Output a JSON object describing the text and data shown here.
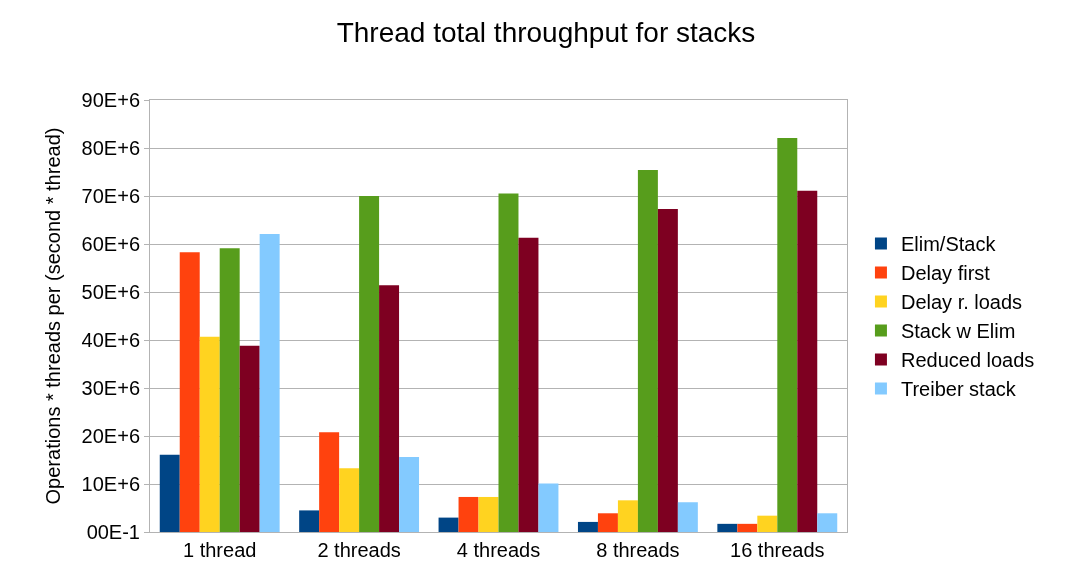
{
  "chart_data": {
    "type": "bar",
    "title": "Thread total throughput for stacks",
    "ylabel": "Operations * threads per (second * thread)",
    "categories": [
      "1 thread",
      "2 threads",
      "4 threads",
      "8 threads",
      "16 threads"
    ],
    "series": [
      {
        "name": "Elim/Stack",
        "color": "#004586",
        "values": [
          16100000,
          4500000,
          3000000,
          2100000,
          1700000
        ]
      },
      {
        "name": "Delay first",
        "color": "#ff420e",
        "values": [
          58300000,
          20800000,
          7300000,
          3900000,
          1700000
        ]
      },
      {
        "name": "Delay r. loads",
        "color": "#ffd320",
        "values": [
          40700000,
          13300000,
          7300000,
          6600000,
          3400000
        ]
      },
      {
        "name": "Stack w Elim",
        "color": "#579d1c",
        "values": [
          59100000,
          70000000,
          70500000,
          75400000,
          82100000
        ]
      },
      {
        "name": "Reduced loads",
        "color": "#7e0021",
        "values": [
          38800000,
          51400000,
          61300000,
          67300000,
          71100000
        ]
      },
      {
        "name": "Treiber stack",
        "color": "#83caff",
        "values": [
          62100000,
          15600000,
          10100000,
          6200000,
          3900000
        ]
      }
    ],
    "ylim": [
      0,
      90000000
    ],
    "yticks": [
      {
        "value": 0,
        "label": "00E-1"
      },
      {
        "value": 10000000,
        "label": "10E+6"
      },
      {
        "value": 20000000,
        "label": "20E+6"
      },
      {
        "value": 30000000,
        "label": "30E+6"
      },
      {
        "value": 40000000,
        "label": "40E+6"
      },
      {
        "value": 50000000,
        "label": "50E+6"
      },
      {
        "value": 60000000,
        "label": "60E+6"
      },
      {
        "value": 70000000,
        "label": "70E+6"
      },
      {
        "value": 80000000,
        "label": "80E+6"
      },
      {
        "value": 90000000,
        "label": "90E+6"
      }
    ],
    "grid": "y",
    "legend": "right"
  }
}
